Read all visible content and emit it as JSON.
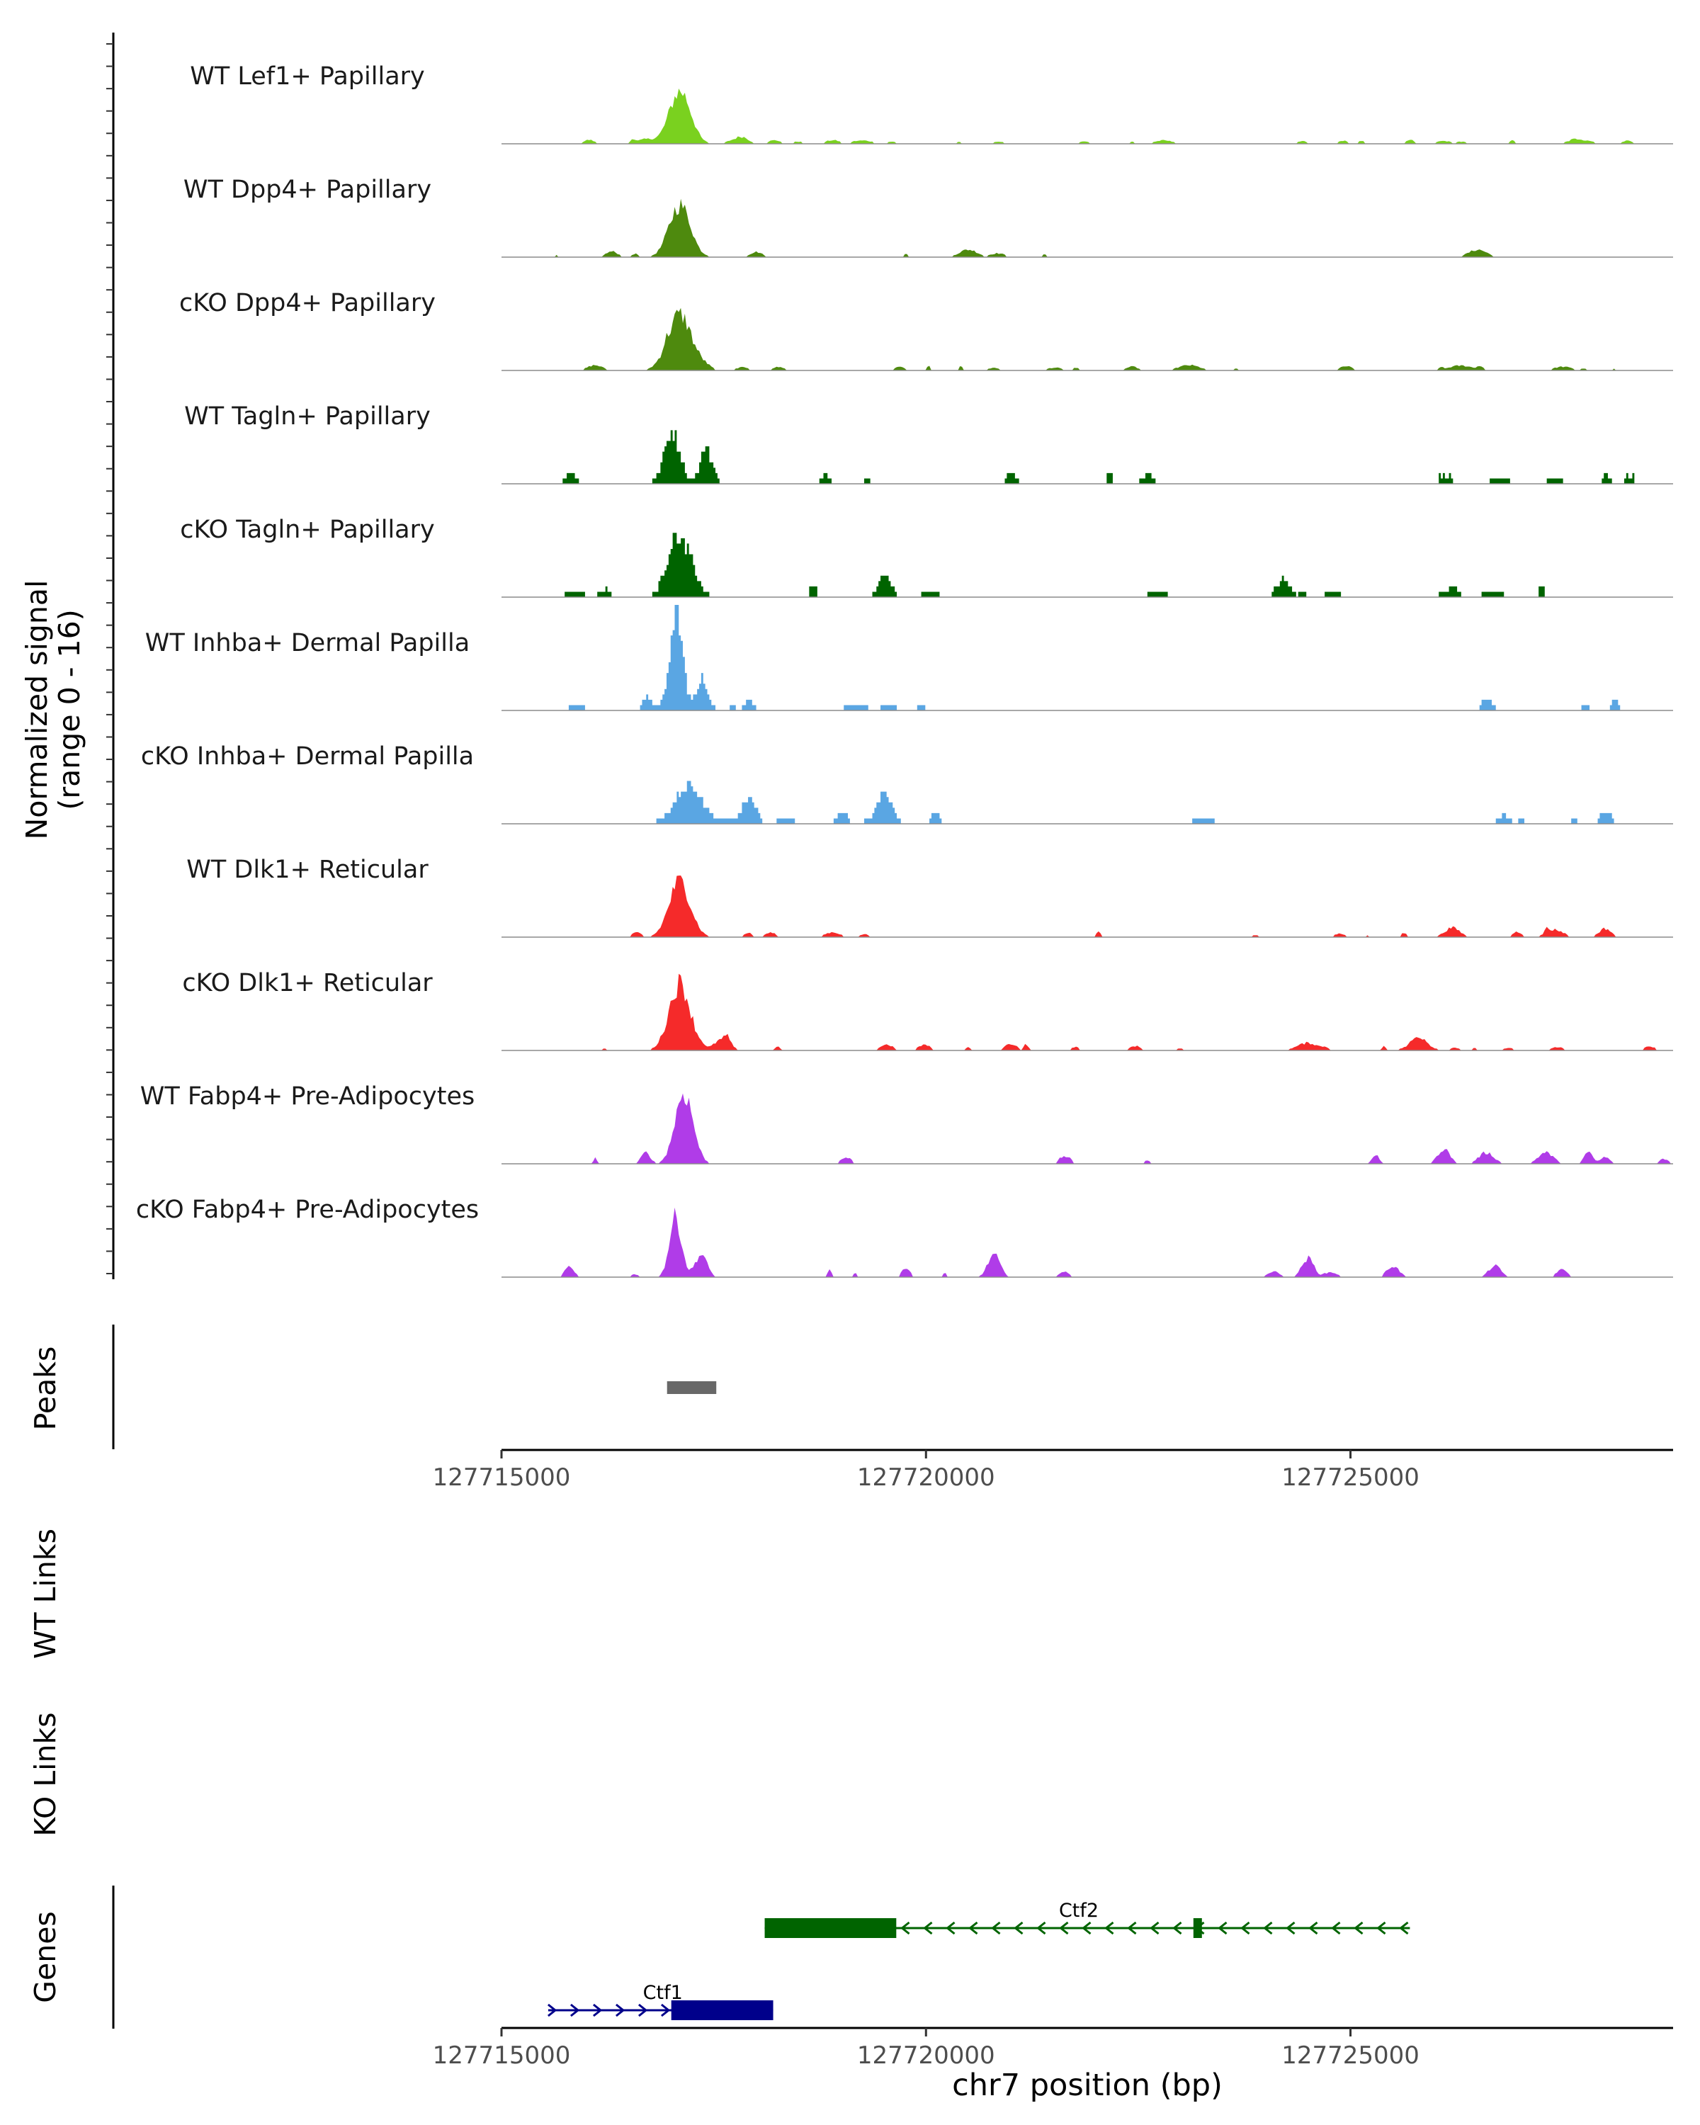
{
  "chart_data": {
    "type": "area",
    "region": {
      "chrom": "chr7",
      "start": 127715000,
      "end": 127728800
    },
    "coverage": {
      "ylabel_line1": "Normalized signal",
      "ylabel_line2": "(range 0 - 16)",
      "ylim": [
        0,
        16
      ],
      "tracks": [
        {
          "name": "WT Lef1+ Papillary",
          "color": "#7ad11f",
          "style": "smooth",
          "peaks": [
            [
              127717100,
              14,
              350
            ],
            [
              127716700,
              1.2,
              300
            ],
            [
              127717800,
              1.5,
              300
            ],
            [
              127719200,
              0.8,
              250
            ],
            [
              127722800,
              0.9,
              300
            ],
            [
              127727700,
              1.0,
              400
            ]
          ],
          "noise": 0.8,
          "noise_prob": 0.9
        },
        {
          "name": "WT Dpp4+ Papillary",
          "color": "#4e8a0e",
          "style": "smooth",
          "peaks": [
            [
              127717100,
              14,
              350
            ],
            [
              127716300,
              1.5,
              200
            ],
            [
              127718000,
              1.4,
              200
            ],
            [
              127720500,
              2.0,
              300
            ],
            [
              127726500,
              2.0,
              300
            ]
          ],
          "noise": 0.9,
          "noise_prob": 0.35
        },
        {
          "name": "cKO Dpp4+ Papillary",
          "color": "#4e8a0e",
          "style": "smooth",
          "peaks": [
            [
              127717100,
              15,
              400
            ],
            [
              127716100,
              1.4,
              250
            ],
            [
              127723100,
              1.4,
              350
            ],
            [
              127726300,
              1.3,
              400
            ],
            [
              127727500,
              1.0,
              300
            ]
          ],
          "noise": 1.0,
          "noise_prob": 0.85
        },
        {
          "name": "WT Tagln+ Papillary",
          "color": "#006400",
          "style": "step",
          "peaks": [
            [
              127717000,
              13,
              250
            ],
            [
              127717400,
              9,
              180
            ],
            [
              127715800,
              2,
              150
            ],
            [
              127718800,
              2,
              120
            ],
            [
              127721000,
              2,
              150
            ],
            [
              127722600,
              2,
              150
            ],
            [
              127728000,
              2,
              100
            ]
          ],
          "noise": 1.6,
          "noise_prob": 0.25
        },
        {
          "name": "cKO Tagln+ Papillary",
          "color": "#006400",
          "style": "step",
          "peaks": [
            [
              127717100,
              15,
              350
            ],
            [
              127719500,
              5,
              200
            ],
            [
              127724200,
              4,
              200
            ],
            [
              127716200,
              1.5,
              150
            ],
            [
              127726200,
              2,
              150
            ]
          ],
          "noise": 1.4,
          "noise_prob": 0.3
        },
        {
          "name": "WT Inhba+ Dermal Papilla",
          "color": "#5aa6e3",
          "style": "step",
          "peaks": [
            [
              127717050,
              26,
              200
            ],
            [
              127717350,
              8,
              180
            ],
            [
              127716700,
              3,
              120
            ],
            [
              127717900,
              2,
              150
            ],
            [
              127726600,
              2.4,
              150
            ],
            [
              127728100,
              2.5,
              100
            ]
          ],
          "noise": 1.0,
          "noise_prob": 0.22
        },
        {
          "name": "cKO Inhba+ Dermal Papilla",
          "color": "#5aa6e3",
          "style": "step",
          "peaks": [
            [
              127717200,
              9,
              450
            ],
            [
              127717900,
              6,
              220
            ],
            [
              127719500,
              8,
              220
            ],
            [
              127720100,
              2.5,
              120
            ],
            [
              127719000,
              2.5,
              150
            ],
            [
              127726800,
              2,
              150
            ],
            [
              127728000,
              3,
              150
            ]
          ],
          "noise": 0.6,
          "noise_prob": 0.12
        },
        {
          "name": "WT Dlk1+ Reticular",
          "color": "#f52a2a",
          "style": "smooth",
          "peaks": [
            [
              127717100,
              15,
              350
            ],
            [
              127726200,
              2.5,
              250
            ],
            [
              127727400,
              2.0,
              300
            ],
            [
              127728000,
              2.3,
              200
            ],
            [
              127718900,
              1.3,
              250
            ]
          ],
          "noise": 1.1,
          "noise_prob": 0.55
        },
        {
          "name": "cKO Dlk1+ Reticular",
          "color": "#f52a2a",
          "style": "smooth",
          "peaks": [
            [
              127717100,
              18,
              350
            ],
            [
              127717600,
              3,
              250
            ],
            [
              127724500,
              2.0,
              350
            ],
            [
              127725800,
              2.2,
              350
            ],
            [
              127721000,
              1.8,
              200
            ]
          ],
          "noise": 1.2,
          "noise_prob": 0.8
        },
        {
          "name": "WT Fabp4+ Pre-Adipocytes",
          "color": "#b03ce8",
          "style": "smooth",
          "peaks": [
            [
              127717150,
              19,
              300
            ],
            [
              127716700,
              3,
              150
            ],
            [
              127726100,
              4,
              200
            ],
            [
              127726600,
              3,
              250
            ],
            [
              127727300,
              3,
              250
            ],
            [
              127727800,
              3,
              150
            ],
            [
              127728000,
              1.8,
              150
            ]
          ],
          "noise": 1.8,
          "noise_prob": 0.25
        },
        {
          "name": "cKO Fabp4+ Pre-Adipocytes",
          "color": "#b03ce8",
          "style": "smooth",
          "peaks": [
            [
              127717050,
              16,
              200
            ],
            [
              127717350,
              6,
              200
            ],
            [
              127720800,
              6,
              200
            ],
            [
              127715800,
              3,
              150
            ],
            [
              127724500,
              5,
              200
            ],
            [
              127726700,
              3,
              200
            ],
            [
              127725500,
              3,
              200
            ]
          ],
          "noise": 1.8,
          "noise_prob": 0.28
        }
      ]
    },
    "peaks_panel": {
      "label": "Peaks",
      "regions": [
        [
          127716950,
          127717530
        ]
      ],
      "color": "#686868"
    },
    "axis": {
      "ticks": [
        127715000,
        127720000,
        127725000
      ],
      "tick_labels": [
        "127715000",
        "127720000",
        "127725000"
      ]
    },
    "links": [
      {
        "label": "WT Links"
      },
      {
        "label": "KO Links"
      }
    ],
    "genes": {
      "label": "Genes",
      "items": [
        {
          "name": "Ctf2",
          "strand": "-",
          "color": "#006400",
          "start": 127718100,
          "end": 127725700,
          "exons": [
            [
              127718100,
              127719650,
              "thick"
            ],
            [
              127723150,
              127723250,
              "thick"
            ]
          ]
        },
        {
          "name": "Ctf1",
          "strand": "+",
          "color": "#00008b",
          "start": 127715550,
          "end": 127718200,
          "exons": [
            [
              127717000,
              127718200,
              "thick"
            ]
          ]
        }
      ]
    },
    "xlabel": "chr7 position (bp)"
  }
}
